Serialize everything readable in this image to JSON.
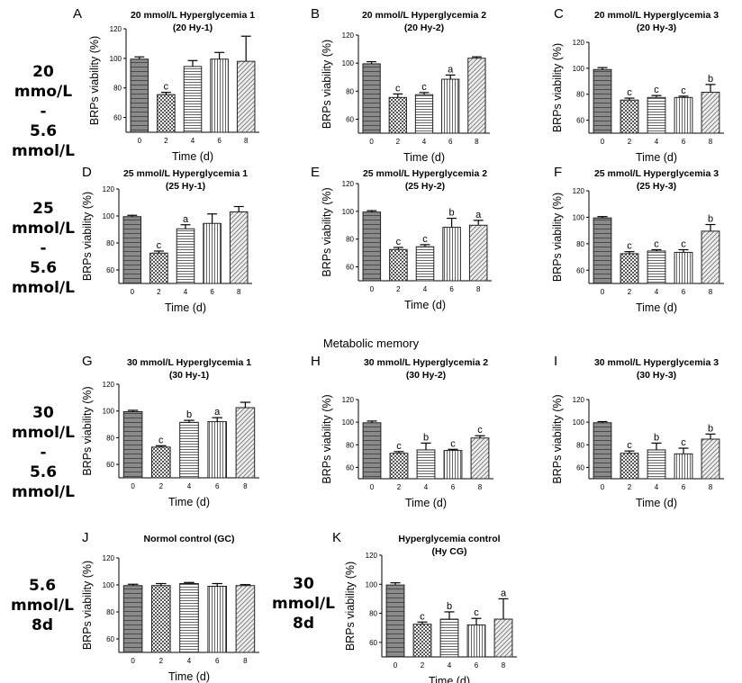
{
  "row_labels": [
    [
      "20 mmo/L",
      "-",
      "5.6 mmol/L"
    ],
    [
      "25 mmol/L",
      "-",
      "5.6 mmol/L"
    ],
    [
      "30 mmol/L",
      "-",
      "5.6 mmol/L"
    ],
    [
      "5.6 mmol/L",
      "8d"
    ],
    [
      "30 mmol/L",
      "8d"
    ]
  ],
  "section_title": "Metabolic memory",
  "chart_data": [
    {
      "type": "bar",
      "panel": "A",
      "title": "20 mmol/L Hyperglycemia 1",
      "subtitle": "(20 Hy-1)",
      "categories": [
        "0",
        "2",
        "4",
        "6",
        "8"
      ],
      "values": [
        99.5,
        75.5,
        94.5,
        99.5,
        98
      ],
      "errors": [
        1.5,
        1.5,
        4,
        4.5,
        17
      ],
      "labels": [
        "",
        "c",
        "",
        "",
        ""
      ],
      "ylim": [
        50,
        120
      ],
      "yticks": [
        60,
        80,
        100,
        120
      ],
      "xlabel": "Time (d)",
      "ylabel": "BRPs viability (%)"
    },
    {
      "type": "bar",
      "panel": "B",
      "title": "20 mmol/L Hyperglycemia 2",
      "subtitle": "(20 Hy-2)",
      "categories": [
        "0",
        "2",
        "4",
        "6",
        "8"
      ],
      "values": [
        99.5,
        75.5,
        77.5,
        88.5,
        103.5
      ],
      "errors": [
        1.5,
        2.5,
        1.5,
        3,
        1
      ],
      "labels": [
        "",
        "c",
        "c",
        "a",
        ""
      ],
      "ylim": [
        50,
        120
      ],
      "yticks": [
        60,
        80,
        100,
        120
      ],
      "xlabel": "Time (d)",
      "ylabel": "BRPs viability (%)"
    },
    {
      "type": "bar",
      "panel": "C",
      "title": "20 mmol/L Hyperglycemia 3",
      "subtitle": "(20 Hy-3)",
      "categories": [
        "0",
        "2",
        "4",
        "6",
        "8"
      ],
      "values": [
        99,
        75.5,
        77.5,
        77.5,
        81.5
      ],
      "errors": [
        1.5,
        1.5,
        1.5,
        1,
        6
      ],
      "labels": [
        "",
        "c",
        "c",
        "c",
        "b"
      ],
      "ylim": [
        50,
        120
      ],
      "yticks": [
        60,
        80,
        100,
        120
      ],
      "xlabel": "Time (d)",
      "ylabel": "BRPs viability (%)"
    },
    {
      "type": "bar",
      "panel": "D",
      "title": "25 mmol/L Hyperglycemia 1",
      "subtitle": "(25 Hy-1)",
      "categories": [
        "0",
        "2",
        "4",
        "6",
        "8"
      ],
      "values": [
        99.5,
        72.5,
        90.5,
        94.5,
        103
      ],
      "errors": [
        1,
        1.5,
        3,
        7,
        4
      ],
      "labels": [
        "",
        "c",
        "a",
        "",
        ""
      ],
      "ylim": [
        50,
        120
      ],
      "yticks": [
        60,
        80,
        100,
        120
      ],
      "xlabel": "Time (d)",
      "ylabel": "BRPs viability (%)"
    },
    {
      "type": "bar",
      "panel": "E",
      "title": "25 mmol/L Hyperglycemia 2",
      "subtitle": "(25 Hy-2)",
      "categories": [
        "0",
        "2",
        "4",
        "6",
        "8"
      ],
      "values": [
        99.5,
        72.5,
        74.5,
        88.5,
        90
      ],
      "errors": [
        1,
        1.5,
        1.5,
        6.5,
        3.5
      ],
      "labels": [
        "",
        "c",
        "c",
        "b",
        "a"
      ],
      "ylim": [
        50,
        120
      ],
      "yticks": [
        60,
        80,
        100,
        120
      ],
      "xlabel": "Time (d)",
      "ylabel": "BRPs viability (%)"
    },
    {
      "type": "bar",
      "panel": "F",
      "title": "25 mmol/L Hyperglycemia 3",
      "subtitle": "(25 Hy-3)",
      "categories": [
        "0",
        "2",
        "4",
        "6",
        "8"
      ],
      "values": [
        99.5,
        72.5,
        74.5,
        73.5,
        89.5
      ],
      "errors": [
        1,
        1.5,
        1,
        2,
        5
      ],
      "labels": [
        "",
        "c",
        "c",
        "c",
        "b"
      ],
      "ylim": [
        50,
        120
      ],
      "yticks": [
        60,
        80,
        100,
        120
      ],
      "xlabel": "Time (d)",
      "ylabel": "BRPs viability (%)"
    },
    {
      "type": "bar",
      "panel": "G",
      "title": "30 mmol/L Hyperglycemia 1",
      "subtitle": "(30 Hy-1)",
      "categories": [
        "0",
        "2",
        "4",
        "6",
        "8"
      ],
      "values": [
        99.5,
        73,
        91.5,
        92,
        102.5
      ],
      "errors": [
        1,
        1,
        1.5,
        3,
        4
      ],
      "labels": [
        "",
        "c",
        "b",
        "a",
        ""
      ],
      "ylim": [
        50,
        120
      ],
      "yticks": [
        60,
        80,
        100,
        120
      ],
      "xlabel": "Time (d)",
      "ylabel": "BRPs viability (%)"
    },
    {
      "type": "bar",
      "panel": "H",
      "title": "30 mmol/L Hyperglycemia 2",
      "subtitle": "(30 Hy-2)",
      "categories": [
        "0",
        "2",
        "4",
        "6",
        "8"
      ],
      "values": [
        99.5,
        72.5,
        75.5,
        75,
        86
      ],
      "errors": [
        1.5,
        1.5,
        6,
        1,
        2
      ],
      "labels": [
        "",
        "c",
        "b",
        "c",
        "c"
      ],
      "ylim": [
        50,
        120
      ],
      "yticks": [
        60,
        80,
        100,
        120
      ],
      "xlabel": "Time (d)",
      "ylabel": "BRPs viability (%)"
    },
    {
      "type": "bar",
      "panel": "I",
      "title": "30 mmol/L Hyperglycemia 3",
      "subtitle": "(30 Hy-3)",
      "categories": [
        "0",
        "2",
        "4",
        "6",
        "8"
      ],
      "values": [
        99.5,
        72.5,
        75.5,
        72,
        85
      ],
      "errors": [
        1,
        2,
        6,
        5,
        4.5
      ],
      "labels": [
        "",
        "c",
        "b",
        "c",
        "b"
      ],
      "ylim": [
        50,
        120
      ],
      "yticks": [
        60,
        80,
        100,
        120
      ],
      "xlabel": "Time (d)",
      "ylabel": "BRPs viability (%)"
    },
    {
      "type": "bar",
      "panel": "J",
      "title": "Normol control (GC)",
      "subtitle": "",
      "categories": [
        "0",
        "2",
        "4",
        "6",
        "8"
      ],
      "values": [
        99.5,
        99.5,
        101,
        99,
        99.5
      ],
      "errors": [
        1,
        1.5,
        0.8,
        2,
        0.7
      ],
      "labels": [
        "",
        "",
        "",
        "",
        ""
      ],
      "ylim": [
        50,
        120
      ],
      "yticks": [
        60,
        80,
        100,
        120
      ],
      "xlabel": "Time (d)",
      "ylabel": "BRPs viability (%)"
    },
    {
      "type": "bar",
      "panel": "K",
      "title": "Hyperglycemia control",
      "subtitle": "(Hy CG)",
      "categories": [
        "0",
        "2",
        "4",
        "6",
        "8"
      ],
      "values": [
        99.5,
        72.5,
        76,
        72,
        76
      ],
      "errors": [
        1.5,
        1.5,
        5,
        4.5,
        14
      ],
      "labels": [
        "",
        "c",
        "b",
        "c",
        "a"
      ],
      "ylim": [
        50,
        120
      ],
      "yticks": [
        60,
        80,
        100,
        120
      ],
      "xlabel": "Time (d)",
      "ylabel": "BRPs viability (%)"
    }
  ]
}
